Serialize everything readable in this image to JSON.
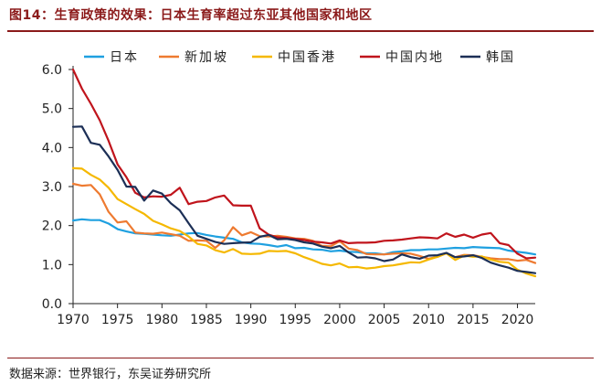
{
  "title": "图14：生育政策的效果：日本生育率超过东亚其他国家和地区",
  "source": "数据来源：世界银行，东吴证券研究所",
  "chart_data": {
    "type": "line",
    "xlim": [
      1970,
      2022
    ],
    "ylim": [
      0,
      6
    ],
    "xticks": [
      1970,
      1975,
      1980,
      1985,
      1990,
      1995,
      2000,
      2005,
      2010,
      2015,
      2020
    ],
    "yticks": [
      "0.0",
      "1.0",
      "2.0",
      "3.0",
      "4.0",
      "5.0",
      "6.0"
    ],
    "grid": false,
    "legend_position": "top",
    "series": [
      {
        "name": "日本",
        "color": "#1fa0e0",
        "x": [
          1970,
          1971,
          1972,
          1973,
          1974,
          1975,
          1976,
          1977,
          1978,
          1979,
          1980,
          1981,
          1982,
          1983,
          1984,
          1985,
          1986,
          1987,
          1988,
          1989,
          1990,
          1991,
          1992,
          1993,
          1994,
          1995,
          1996,
          1997,
          1998,
          1999,
          2000,
          2001,
          2002,
          2003,
          2004,
          2005,
          2006,
          2007,
          2008,
          2009,
          2010,
          2011,
          2012,
          2013,
          2014,
          2015,
          2016,
          2017,
          2018,
          2019,
          2020,
          2021,
          2022
        ],
        "values": [
          2.13,
          2.16,
          2.14,
          2.14,
          2.05,
          1.91,
          1.85,
          1.8,
          1.79,
          1.77,
          1.75,
          1.74,
          1.77,
          1.8,
          1.81,
          1.76,
          1.72,
          1.69,
          1.66,
          1.57,
          1.54,
          1.53,
          1.5,
          1.46,
          1.5,
          1.42,
          1.43,
          1.39,
          1.38,
          1.34,
          1.36,
          1.33,
          1.32,
          1.29,
          1.29,
          1.26,
          1.32,
          1.34,
          1.37,
          1.37,
          1.39,
          1.39,
          1.41,
          1.43,
          1.42,
          1.45,
          1.44,
          1.43,
          1.42,
          1.36,
          1.33,
          1.3,
          1.26
        ]
      },
      {
        "name": "新加坡",
        "color": "#ee7a30",
        "x": [
          1970,
          1971,
          1972,
          1973,
          1974,
          1975,
          1976,
          1977,
          1978,
          1979,
          1980,
          1981,
          1982,
          1983,
          1984,
          1985,
          1986,
          1987,
          1988,
          1989,
          1990,
          1991,
          1992,
          1993,
          1994,
          1995,
          1996,
          1997,
          1998,
          1999,
          2000,
          2001,
          2002,
          2003,
          2004,
          2005,
          2006,
          2007,
          2008,
          2009,
          2010,
          2011,
          2012,
          2013,
          2014,
          2015,
          2016,
          2017,
          2018,
          2019,
          2020,
          2021,
          2022
        ],
        "values": [
          3.07,
          3.02,
          3.04,
          2.8,
          2.35,
          2.08,
          2.11,
          1.82,
          1.8,
          1.79,
          1.82,
          1.78,
          1.74,
          1.61,
          1.62,
          1.61,
          1.43,
          1.62,
          1.96,
          1.75,
          1.83,
          1.73,
          1.72,
          1.74,
          1.71,
          1.67,
          1.66,
          1.61,
          1.48,
          1.47,
          1.6,
          1.41,
          1.37,
          1.27,
          1.26,
          1.26,
          1.28,
          1.29,
          1.28,
          1.22,
          1.15,
          1.2,
          1.29,
          1.19,
          1.25,
          1.24,
          1.2,
          1.16,
          1.14,
          1.14,
          1.1,
          1.12,
          1.04
        ]
      },
      {
        "name": "中国香港",
        "color": "#f5b800",
        "x": [
          1970,
          1971,
          1972,
          1973,
          1974,
          1975,
          1976,
          1977,
          1978,
          1979,
          1980,
          1981,
          1982,
          1983,
          1984,
          1985,
          1986,
          1987,
          1988,
          1989,
          1990,
          1991,
          1992,
          1993,
          1994,
          1995,
          1996,
          1997,
          1998,
          1999,
          2000,
          2001,
          2002,
          2003,
          2004,
          2005,
          2006,
          2007,
          2008,
          2009,
          2010,
          2011,
          2012,
          2013,
          2014,
          2015,
          2016,
          2017,
          2018,
          2019,
          2020,
          2021,
          2022
        ],
        "values": [
          3.47,
          3.46,
          3.3,
          3.18,
          2.97,
          2.68,
          2.55,
          2.42,
          2.3,
          2.12,
          2.03,
          1.93,
          1.86,
          1.72,
          1.53,
          1.49,
          1.37,
          1.31,
          1.4,
          1.28,
          1.27,
          1.28,
          1.35,
          1.34,
          1.35,
          1.29,
          1.19,
          1.11,
          1.02,
          0.98,
          1.03,
          0.93,
          0.94,
          0.9,
          0.92,
          0.96,
          0.98,
          1.02,
          1.06,
          1.05,
          1.13,
          1.2,
          1.29,
          1.12,
          1.23,
          1.2,
          1.21,
          1.13,
          1.07,
          1.05,
          0.87,
          0.77,
          0.7
        ]
      },
      {
        "name": "中国内地",
        "color": "#c0141c",
        "x": [
          1970,
          1971,
          1972,
          1973,
          1974,
          1975,
          1976,
          1977,
          1978,
          1979,
          1980,
          1981,
          1982,
          1983,
          1984,
          1985,
          1986,
          1987,
          1988,
          1989,
          1990,
          1991,
          1992,
          1993,
          1994,
          1995,
          1996,
          1997,
          1998,
          1999,
          2000,
          2001,
          2002,
          2003,
          2004,
          2005,
          2006,
          2007,
          2008,
          2009,
          2010,
          2011,
          2012,
          2013,
          2014,
          2015,
          2016,
          2017,
          2018,
          2019,
          2020,
          2021,
          2022
        ],
        "values": [
          6.0,
          5.51,
          5.12,
          4.7,
          4.17,
          3.57,
          3.24,
          2.84,
          2.72,
          2.75,
          2.74,
          2.79,
          2.97,
          2.55,
          2.61,
          2.63,
          2.72,
          2.77,
          2.52,
          2.51,
          2.51,
          1.93,
          1.77,
          1.7,
          1.68,
          1.66,
          1.63,
          1.59,
          1.57,
          1.54,
          1.62,
          1.55,
          1.56,
          1.56,
          1.57,
          1.61,
          1.62,
          1.64,
          1.67,
          1.7,
          1.69,
          1.67,
          1.8,
          1.71,
          1.77,
          1.69,
          1.77,
          1.81,
          1.55,
          1.5,
          1.28,
          1.16,
          1.18
        ]
      },
      {
        "name": "韩国",
        "color": "#1c2f56",
        "x": [
          1970,
          1971,
          1972,
          1973,
          1974,
          1975,
          1976,
          1977,
          1978,
          1979,
          1980,
          1981,
          1982,
          1983,
          1984,
          1985,
          1986,
          1987,
          1988,
          1989,
          1990,
          1991,
          1992,
          1993,
          1994,
          1995,
          1996,
          1997,
          1998,
          1999,
          2000,
          2001,
          2002,
          2003,
          2004,
          2005,
          2006,
          2007,
          2008,
          2009,
          2010,
          2011,
          2012,
          2013,
          2014,
          2015,
          2016,
          2017,
          2018,
          2019,
          2020,
          2021,
          2022
        ],
        "values": [
          4.53,
          4.54,
          4.12,
          4.07,
          3.77,
          3.43,
          3.0,
          2.99,
          2.64,
          2.9,
          2.82,
          2.57,
          2.39,
          2.06,
          1.74,
          1.66,
          1.58,
          1.53,
          1.55,
          1.56,
          1.57,
          1.71,
          1.76,
          1.65,
          1.66,
          1.63,
          1.57,
          1.54,
          1.46,
          1.42,
          1.48,
          1.31,
          1.18,
          1.19,
          1.16,
          1.09,
          1.13,
          1.26,
          1.19,
          1.15,
          1.23,
          1.24,
          1.3,
          1.19,
          1.21,
          1.24,
          1.17,
          1.05,
          0.98,
          0.92,
          0.84,
          0.81,
          0.78
        ]
      }
    ]
  }
}
